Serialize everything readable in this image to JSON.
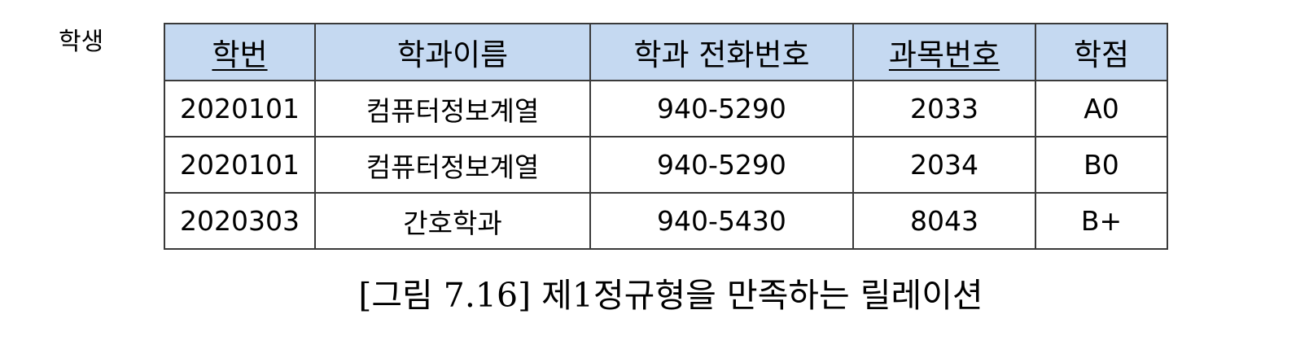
{
  "relation": {
    "name": "학생"
  },
  "table": {
    "headers": [
      {
        "label": "학번",
        "key": true
      },
      {
        "label": "학과이름",
        "key": false
      },
      {
        "label": "학과 전화번호",
        "key": false
      },
      {
        "label": "과목번호",
        "key": true
      },
      {
        "label": "학점",
        "key": false
      }
    ],
    "rows": [
      [
        "2020101",
        "컴퓨터정보계열",
        "940-5290",
        "2033",
        "A0"
      ],
      [
        "2020101",
        "컴퓨터정보계열",
        "940-5290",
        "2034",
        "B0"
      ],
      [
        "2020303",
        "간호학과",
        "940-5430",
        "8043",
        "B+"
      ]
    ],
    "colors": {
      "header_bg": "#c5d9f1",
      "border": "#3a3a3a"
    }
  },
  "caption": "[그림 7.16] 제1정규형을 만족하는 릴레이션"
}
